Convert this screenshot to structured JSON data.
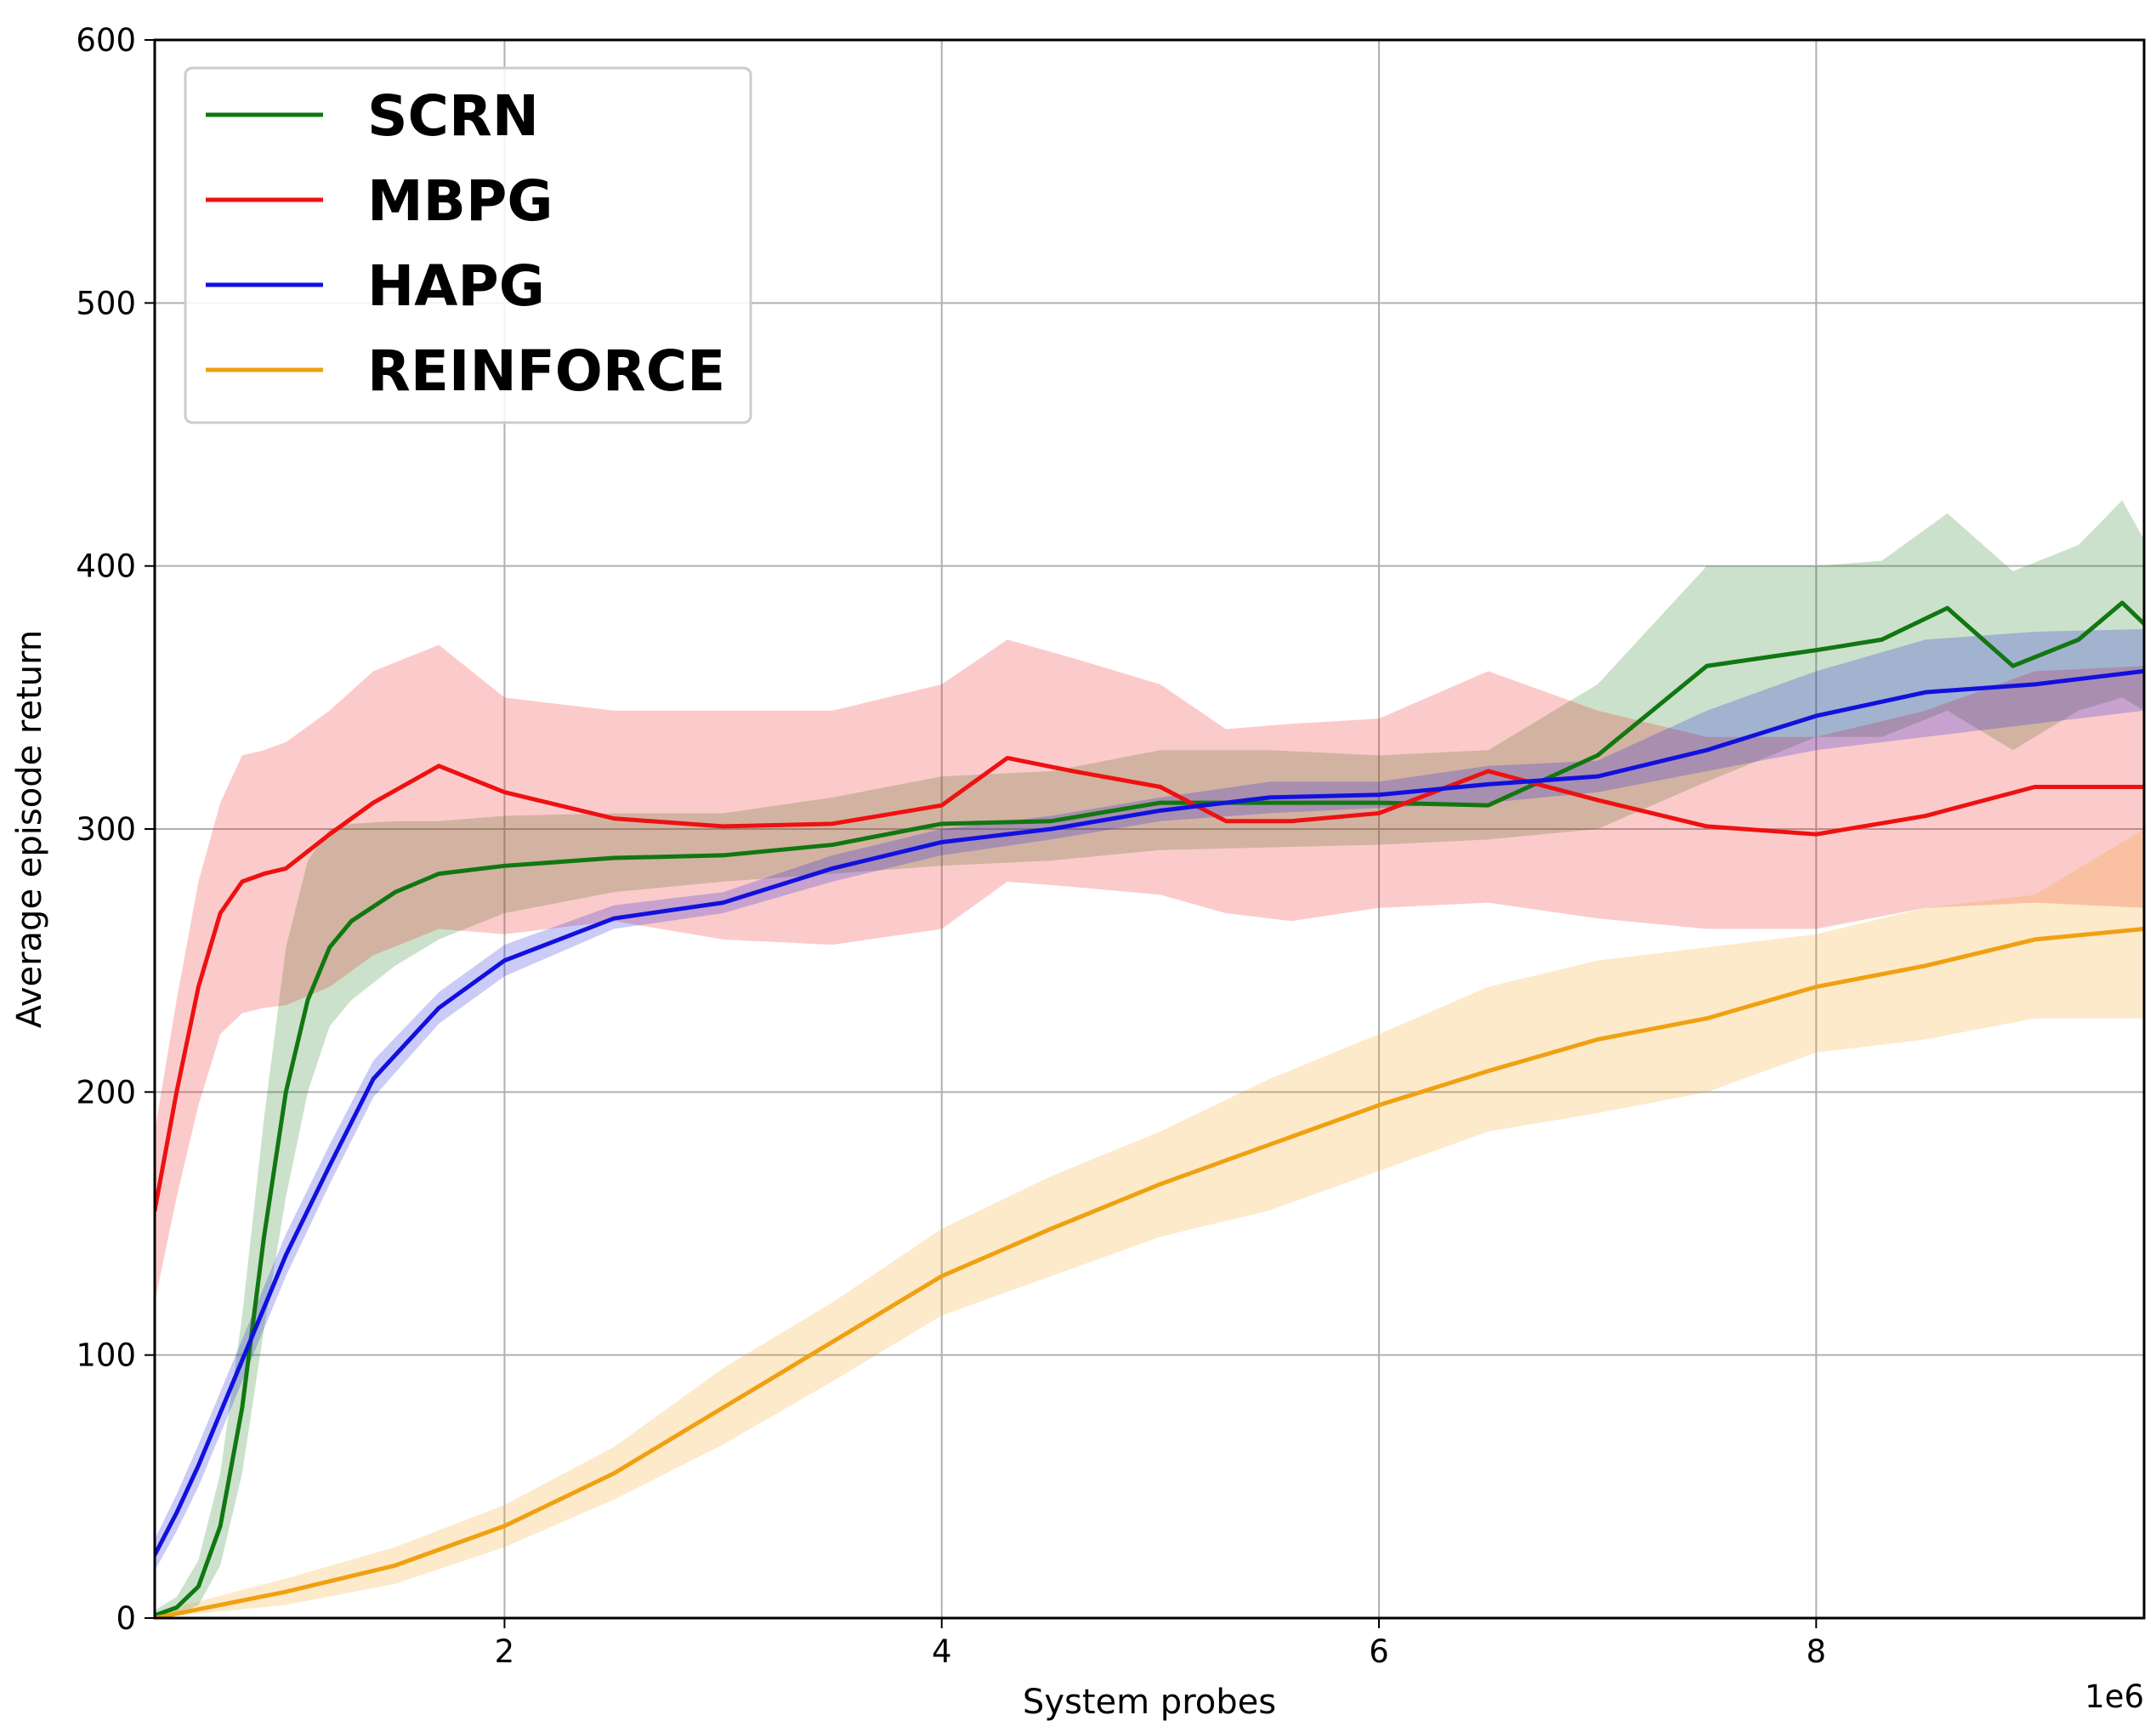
{
  "chart_data": {
    "type": "line",
    "title": "",
    "xlabel": "System probes",
    "ylabel": "Average episode return",
    "x_offset_label": "1e6",
    "xlim": [
      0.4,
      9.5
    ],
    "ylim": [
      0,
      600
    ],
    "x_ticks": [
      2,
      4,
      6,
      8
    ],
    "x_tick_labels": [
      "2",
      "4",
      "6",
      "8"
    ],
    "y_ticks": [
      0,
      100,
      200,
      300,
      400,
      500,
      600
    ],
    "y_tick_labels": [
      "0",
      "100",
      "200",
      "300",
      "400",
      "500",
      "600"
    ],
    "grid": true,
    "legend_position": "upper-left",
    "series": [
      {
        "name": "SCRN",
        "color": "#117711",
        "x": [
          0.4,
          0.5,
          0.6,
          0.7,
          0.8,
          0.9,
          1.0,
          1.1,
          1.2,
          1.3,
          1.5,
          1.7,
          2.0,
          2.5,
          3.0,
          3.5,
          4.0,
          4.5,
          5.0,
          5.5,
          6.0,
          6.5,
          7.0,
          7.5,
          8.0,
          8.3,
          8.6,
          8.9,
          9.2,
          9.4,
          9.5
        ],
        "y": [
          1,
          4,
          12,
          35,
          80,
          145,
          200,
          235,
          255,
          265,
          276,
          283,
          286,
          289,
          290,
          294,
          302,
          303,
          310,
          310,
          310,
          309,
          328,
          362,
          368,
          372,
          384,
          362,
          372,
          386,
          378
        ],
        "lower": [
          0,
          1,
          5,
          20,
          55,
          110,
          160,
          200,
          225,
          235,
          248,
          258,
          268,
          276,
          280,
          283,
          286,
          288,
          292,
          293,
          294,
          296,
          300,
          318,
          335,
          335,
          345,
          330,
          345,
          350,
          345
        ],
        "upper": [
          3,
          8,
          22,
          55,
          115,
          190,
          255,
          288,
          300,
          302,
          303,
          303,
          305,
          306,
          306,
          312,
          320,
          322,
          330,
          330,
          328,
          330,
          355,
          400,
          400,
          402,
          420,
          398,
          408,
          425,
          410
        ]
      },
      {
        "name": "MBPG",
        "color": "#ee1111",
        "x": [
          0.4,
          0.5,
          0.6,
          0.7,
          0.8,
          0.9,
          1.0,
          1.2,
          1.4,
          1.7,
          2.0,
          2.5,
          3.0,
          3.5,
          4.0,
          4.3,
          4.6,
          5.0,
          5.3,
          5.6,
          6.0,
          6.5,
          7.0,
          7.5,
          8.0,
          8.5,
          9.0,
          9.5
        ],
        "y": [
          155,
          200,
          240,
          268,
          280,
          283,
          285,
          298,
          310,
          324,
          314,
          304,
          301,
          302,
          309,
          327,
          322,
          316,
          303,
          303,
          306,
          322,
          311,
          301,
          298,
          305,
          316,
          316
        ],
        "lower": [
          120,
          160,
          195,
          222,
          230,
          232,
          233,
          240,
          252,
          262,
          260,
          265,
          258,
          256,
          262,
          280,
          278,
          275,
          268,
          265,
          270,
          272,
          266,
          262,
          262,
          270,
          272,
          270
        ],
        "upper": [
          185,
          235,
          280,
          310,
          328,
          330,
          333,
          345,
          360,
          370,
          350,
          345,
          345,
          345,
          355,
          372,
          365,
          355,
          338,
          340,
          342,
          360,
          345,
          335,
          335,
          345,
          360,
          362
        ]
      },
      {
        "name": "HAPG",
        "color": "#1111dd",
        "x": [
          0.4,
          0.5,
          0.6,
          0.7,
          0.8,
          0.9,
          1.0,
          1.2,
          1.4,
          1.7,
          2.0,
          2.5,
          3.0,
          3.5,
          4.0,
          4.5,
          5.0,
          5.5,
          6.0,
          6.5,
          7.0,
          7.5,
          8.0,
          8.5,
          9.0,
          9.5
        ],
        "y": [
          24,
          40,
          58,
          78,
          98,
          118,
          138,
          172,
          205,
          232,
          250,
          266,
          272,
          285,
          295,
          300,
          307,
          312,
          313,
          317,
          320,
          330,
          343,
          352,
          355,
          360
        ],
        "lower": [
          18,
          33,
          50,
          70,
          90,
          110,
          130,
          165,
          198,
          226,
          244,
          262,
          268,
          280,
          290,
          296,
          303,
          306,
          308,
          310,
          314,
          322,
          330,
          335,
          340,
          345
        ],
        "upper": [
          30,
          47,
          66,
          86,
          106,
          126,
          146,
          180,
          212,
          238,
          256,
          271,
          276,
          290,
          300,
          305,
          312,
          318,
          318,
          324,
          326,
          345,
          360,
          372,
          375,
          376
        ]
      },
      {
        "name": "REINFORCE",
        "color": "#f0a010",
        "x": [
          0.4,
          1.0,
          1.5,
          2.0,
          2.5,
          3.0,
          3.5,
          4.0,
          4.5,
          5.0,
          5.5,
          6.0,
          6.5,
          7.0,
          7.5,
          8.0,
          8.5,
          9.0,
          9.5
        ],
        "y": [
          0,
          10,
          20,
          35,
          55,
          80,
          105,
          130,
          148,
          165,
          180,
          195,
          208,
          220,
          228,
          240,
          248,
          258,
          262
        ],
        "lower": [
          0,
          5,
          13,
          27,
          45,
          66,
          90,
          115,
          130,
          145,
          155,
          170,
          185,
          192,
          200,
          215,
          220,
          228,
          228
        ],
        "upper": [
          2,
          15,
          27,
          43,
          65,
          95,
          120,
          148,
          168,
          185,
          205,
          222,
          240,
          250,
          255,
          260,
          270,
          275,
          300
        ]
      }
    ]
  }
}
